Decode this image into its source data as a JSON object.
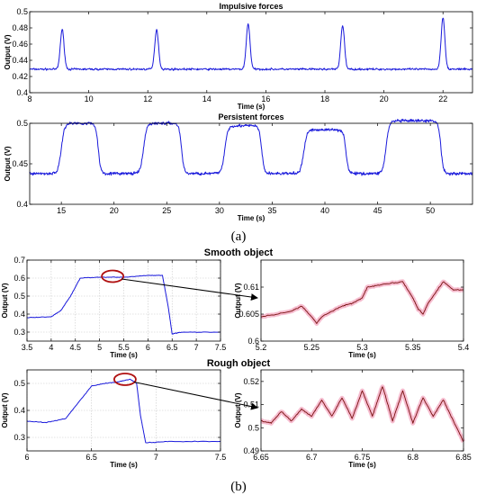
{
  "captions": {
    "a": "(a)",
    "b": "(b)"
  },
  "chart_data": [
    {
      "id": "impulsive",
      "type": "line",
      "title": "Impulsive forces",
      "xlabel": "Time (s)",
      "ylabel": "Output (V)",
      "xlim": [
        8,
        23
      ],
      "ylim": [
        0.4,
        0.5
      ],
      "xticks": [
        8,
        10,
        12,
        14,
        16,
        18,
        20,
        22
      ],
      "yticks": [
        0.4,
        0.42,
        0.44,
        0.46,
        0.48,
        0.5
      ],
      "ytick_labels": [
        "0.4",
        "0.42",
        "0.44",
        "0.46",
        "0.48",
        "0.5"
      ],
      "grid": false,
      "line_color": "#1a1adb",
      "series": [
        {
          "baseline": 0.429,
          "peaks": [
            [
              9.1,
              0.478
            ],
            [
              12.3,
              0.478
            ],
            [
              15.4,
              0.485
            ],
            [
              18.6,
              0.483
            ],
            [
              22.0,
              0.493
            ]
          ]
        }
      ]
    },
    {
      "id": "persistent",
      "type": "line",
      "title": "Persistent forces",
      "xlabel": "Time (s)",
      "ylabel": "Output (V)",
      "xlim": [
        12,
        54
      ],
      "ylim": [
        0.4,
        0.5
      ],
      "xticks": [
        15,
        20,
        25,
        30,
        35,
        40,
        45,
        50
      ],
      "yticks": [
        0.4,
        0.45,
        0.5
      ],
      "ytick_labels": [
        "0.4",
        "0.45",
        "0.5"
      ],
      "grid": false,
      "line_color": "#1a1adb",
      "series": [
        {
          "baseline": 0.438,
          "plateaus": [
            [
              15.0,
              18.5,
              0.5
            ],
            [
              22.8,
              26.4,
              0.5
            ],
            [
              30.5,
              34.0,
              0.497
            ],
            [
              38.0,
              42.0,
              0.492
            ],
            [
              45.8,
              51.0,
              0.503
            ]
          ]
        }
      ]
    },
    {
      "id": "smooth_full",
      "type": "line",
      "title": "Smooth object",
      "xlabel": "Time (s)",
      "ylabel": "Output (V)",
      "xlim": [
        3.5,
        7.5
      ],
      "ylim": [
        0.25,
        0.7
      ],
      "xticks": [
        3.5,
        4,
        4.5,
        5,
        5.5,
        6,
        6.5,
        7,
        7.5
      ],
      "yticks": [
        0.3,
        0.4,
        0.5,
        0.6,
        0.7
      ],
      "ytick_labels": [
        "0.3",
        "0.4",
        "0.5",
        "0.6",
        "0.7"
      ],
      "grid": true,
      "line_color": "#1a1adb",
      "series": [
        {
          "points": [
            [
              3.5,
              0.38
            ],
            [
              4.0,
              0.385
            ],
            [
              4.2,
              0.42
            ],
            [
              4.4,
              0.5
            ],
            [
              4.6,
              0.6
            ],
            [
              5.0,
              0.605
            ],
            [
              5.5,
              0.605
            ],
            [
              6.0,
              0.615
            ],
            [
              6.3,
              0.615
            ],
            [
              6.42,
              0.44
            ],
            [
              6.5,
              0.29
            ],
            [
              6.7,
              0.3
            ],
            [
              7.5,
              0.3
            ]
          ]
        }
      ],
      "highlight": [
        5.27,
        0.61
      ]
    },
    {
      "id": "smooth_zoom",
      "type": "line",
      "title": "",
      "xlabel": "Time (s)",
      "ylabel": "Output (V)",
      "xlim": [
        5.2,
        5.4
      ],
      "ylim": [
        0.6,
        0.615
      ],
      "xticks": [
        5.2,
        5.25,
        5.3,
        5.35,
        5.4
      ],
      "yticks": [
        0.6,
        0.605,
        0.61
      ],
      "ytick_labels": [
        "0.6",
        "0.605",
        "0.61"
      ],
      "grid": false,
      "line_color": "#7a1010",
      "glow_color": "#f3a6bf",
      "series": [
        {
          "points": [
            [
              5.2,
              0.6045
            ],
            [
              5.23,
              0.6055
            ],
            [
              5.24,
              0.6065
            ],
            [
              5.25,
              0.6045
            ],
            [
              5.255,
              0.6033
            ],
            [
              5.26,
              0.6045
            ],
            [
              5.28,
              0.6065
            ],
            [
              5.29,
              0.607
            ],
            [
              5.3,
              0.608
            ],
            [
              5.305,
              0.61
            ],
            [
              5.32,
              0.6105
            ],
            [
              5.34,
              0.611
            ],
            [
              5.35,
              0.608
            ],
            [
              5.355,
              0.606
            ],
            [
              5.36,
              0.605
            ],
            [
              5.365,
              0.607
            ],
            [
              5.38,
              0.611
            ],
            [
              5.39,
              0.6095
            ],
            [
              5.4,
              0.6095
            ]
          ]
        }
      ]
    },
    {
      "id": "rough_full",
      "type": "line",
      "title": "Rough object",
      "xlabel": "Time (s)",
      "ylabel": "Output (V)",
      "xlim": [
        6,
        7.5
      ],
      "ylim": [
        0.25,
        0.55
      ],
      "xticks": [
        6,
        6.5,
        7,
        7.5
      ],
      "yticks": [
        0.3,
        0.4,
        0.5
      ],
      "ytick_labels": [
        "0.3",
        "0.4",
        "0.5"
      ],
      "grid": true,
      "line_color": "#1a1adb",
      "series": [
        {
          "points": [
            [
              6.0,
              0.36
            ],
            [
              6.15,
              0.355
            ],
            [
              6.3,
              0.37
            ],
            [
              6.4,
              0.43
            ],
            [
              6.5,
              0.49
            ],
            [
              6.6,
              0.5
            ],
            [
              6.7,
              0.505
            ],
            [
              6.8,
              0.515
            ],
            [
              6.85,
              0.5
            ],
            [
              6.88,
              0.38
            ],
            [
              6.92,
              0.28
            ],
            [
              7.1,
              0.285
            ],
            [
              7.5,
              0.285
            ]
          ]
        }
      ],
      "highlight": [
        6.76,
        0.515
      ]
    },
    {
      "id": "rough_zoom",
      "type": "line",
      "title": "",
      "xlabel": "Time (s)",
      "ylabel": "Output (V)",
      "xlim": [
        6.65,
        6.85
      ],
      "ylim": [
        0.49,
        0.525
      ],
      "xticks": [
        6.65,
        6.7,
        6.75,
        6.8,
        6.85
      ],
      "yticks": [
        0.49,
        0.5,
        0.51,
        0.52
      ],
      "ytick_labels": [
        "0.49",
        "0.5",
        "0.51",
        "0.52"
      ],
      "grid": false,
      "line_color": "#7a1010",
      "glow_color": "#f3a6bf",
      "series": [
        {
          "points": [
            [
              6.65,
              0.503
            ],
            [
              6.66,
              0.502
            ],
            [
              6.67,
              0.507
            ],
            [
              6.68,
              0.503
            ],
            [
              6.69,
              0.508
            ],
            [
              6.7,
              0.505
            ],
            [
              6.71,
              0.512
            ],
            [
              6.72,
              0.505
            ],
            [
              6.73,
              0.513
            ],
            [
              6.74,
              0.504
            ],
            [
              6.75,
              0.516
            ],
            [
              6.76,
              0.505
            ],
            [
              6.77,
              0.518
            ],
            [
              6.78,
              0.503
            ],
            [
              6.79,
              0.516
            ],
            [
              6.8,
              0.502
            ],
            [
              6.81,
              0.513
            ],
            [
              6.82,
              0.505
            ],
            [
              6.83,
              0.512
            ],
            [
              6.84,
              0.503
            ],
            [
              6.85,
              0.494
            ]
          ]
        }
      ]
    }
  ]
}
